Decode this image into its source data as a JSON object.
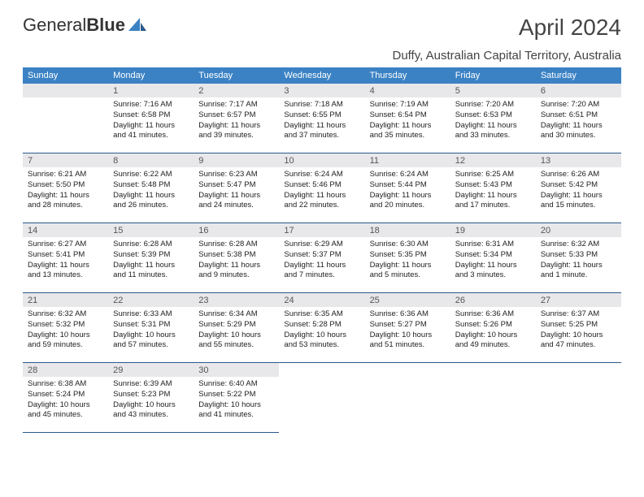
{
  "brand": {
    "name1": "General",
    "name2": "Blue"
  },
  "title": "April 2024",
  "location": "Duffy, Australian Capital Territory, Australia",
  "colors": {
    "header_bg": "#3b82c4",
    "header_text": "#ffffff",
    "daynum_bg": "#e8e8ea",
    "daynum_text": "#555555",
    "body_text": "#222222",
    "rule": "#2a5a8a",
    "logo_accent": "#3b82c4"
  },
  "typography": {
    "title_fontsize": 28,
    "location_fontsize": 15,
    "weekday_fontsize": 11,
    "daynum_fontsize": 11,
    "cell_fontsize": 9.5
  },
  "weekdays": [
    "Sunday",
    "Monday",
    "Tuesday",
    "Wednesday",
    "Thursday",
    "Friday",
    "Saturday"
  ],
  "structure_type": "calendar-table",
  "month_start_weekday": 1,
  "days": [
    {
      "n": 1,
      "sunrise": "7:16 AM",
      "sunset": "6:58 PM",
      "daylight": "11 hours and 41 minutes."
    },
    {
      "n": 2,
      "sunrise": "7:17 AM",
      "sunset": "6:57 PM",
      "daylight": "11 hours and 39 minutes."
    },
    {
      "n": 3,
      "sunrise": "7:18 AM",
      "sunset": "6:55 PM",
      "daylight": "11 hours and 37 minutes."
    },
    {
      "n": 4,
      "sunrise": "7:19 AM",
      "sunset": "6:54 PM",
      "daylight": "11 hours and 35 minutes."
    },
    {
      "n": 5,
      "sunrise": "7:20 AM",
      "sunset": "6:53 PM",
      "daylight": "11 hours and 33 minutes."
    },
    {
      "n": 6,
      "sunrise": "7:20 AM",
      "sunset": "6:51 PM",
      "daylight": "11 hours and 30 minutes."
    },
    {
      "n": 7,
      "sunrise": "6:21 AM",
      "sunset": "5:50 PM",
      "daylight": "11 hours and 28 minutes."
    },
    {
      "n": 8,
      "sunrise": "6:22 AM",
      "sunset": "5:48 PM",
      "daylight": "11 hours and 26 minutes."
    },
    {
      "n": 9,
      "sunrise": "6:23 AM",
      "sunset": "5:47 PM",
      "daylight": "11 hours and 24 minutes."
    },
    {
      "n": 10,
      "sunrise": "6:24 AM",
      "sunset": "5:46 PM",
      "daylight": "11 hours and 22 minutes."
    },
    {
      "n": 11,
      "sunrise": "6:24 AM",
      "sunset": "5:44 PM",
      "daylight": "11 hours and 20 minutes."
    },
    {
      "n": 12,
      "sunrise": "6:25 AM",
      "sunset": "5:43 PM",
      "daylight": "11 hours and 17 minutes."
    },
    {
      "n": 13,
      "sunrise": "6:26 AM",
      "sunset": "5:42 PM",
      "daylight": "11 hours and 15 minutes."
    },
    {
      "n": 14,
      "sunrise": "6:27 AM",
      "sunset": "5:41 PM",
      "daylight": "11 hours and 13 minutes."
    },
    {
      "n": 15,
      "sunrise": "6:28 AM",
      "sunset": "5:39 PM",
      "daylight": "11 hours and 11 minutes."
    },
    {
      "n": 16,
      "sunrise": "6:28 AM",
      "sunset": "5:38 PM",
      "daylight": "11 hours and 9 minutes."
    },
    {
      "n": 17,
      "sunrise": "6:29 AM",
      "sunset": "5:37 PM",
      "daylight": "11 hours and 7 minutes."
    },
    {
      "n": 18,
      "sunrise": "6:30 AM",
      "sunset": "5:35 PM",
      "daylight": "11 hours and 5 minutes."
    },
    {
      "n": 19,
      "sunrise": "6:31 AM",
      "sunset": "5:34 PM",
      "daylight": "11 hours and 3 minutes."
    },
    {
      "n": 20,
      "sunrise": "6:32 AM",
      "sunset": "5:33 PM",
      "daylight": "11 hours and 1 minute."
    },
    {
      "n": 21,
      "sunrise": "6:32 AM",
      "sunset": "5:32 PM",
      "daylight": "10 hours and 59 minutes."
    },
    {
      "n": 22,
      "sunrise": "6:33 AM",
      "sunset": "5:31 PM",
      "daylight": "10 hours and 57 minutes."
    },
    {
      "n": 23,
      "sunrise": "6:34 AM",
      "sunset": "5:29 PM",
      "daylight": "10 hours and 55 minutes."
    },
    {
      "n": 24,
      "sunrise": "6:35 AM",
      "sunset": "5:28 PM",
      "daylight": "10 hours and 53 minutes."
    },
    {
      "n": 25,
      "sunrise": "6:36 AM",
      "sunset": "5:27 PM",
      "daylight": "10 hours and 51 minutes."
    },
    {
      "n": 26,
      "sunrise": "6:36 AM",
      "sunset": "5:26 PM",
      "daylight": "10 hours and 49 minutes."
    },
    {
      "n": 27,
      "sunrise": "6:37 AM",
      "sunset": "5:25 PM",
      "daylight": "10 hours and 47 minutes."
    },
    {
      "n": 28,
      "sunrise": "6:38 AM",
      "sunset": "5:24 PM",
      "daylight": "10 hours and 45 minutes."
    },
    {
      "n": 29,
      "sunrise": "6:39 AM",
      "sunset": "5:23 PM",
      "daylight": "10 hours and 43 minutes."
    },
    {
      "n": 30,
      "sunrise": "6:40 AM",
      "sunset": "5:22 PM",
      "daylight": "10 hours and 41 minutes."
    }
  ],
  "labels": {
    "sunrise_prefix": "Sunrise: ",
    "sunset_prefix": "Sunset: ",
    "daylight_prefix": "Daylight: "
  }
}
